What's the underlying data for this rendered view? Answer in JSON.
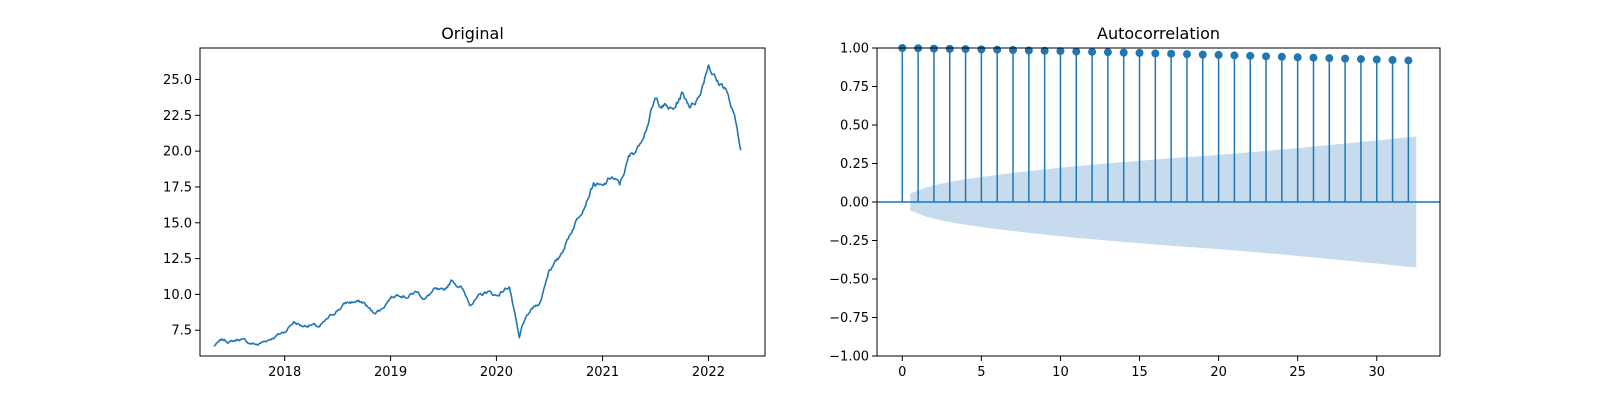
{
  "colors": {
    "line": "#1f77b4",
    "stem": "#1f77b4",
    "marker": "#1f77b4",
    "confidence_band": "#c6dbee",
    "axis": "#000000",
    "background": "#ffffff"
  },
  "chart_data": [
    {
      "type": "line",
      "title": "Original",
      "xlabel": "",
      "ylabel": "",
      "grid": false,
      "x_ticks": [
        "2018",
        "2019",
        "2020",
        "2021",
        "2022"
      ],
      "y_ticks": [
        "7.5",
        "10.0",
        "12.5",
        "15.0",
        "17.5",
        "20.0",
        "22.5",
        "25.0"
      ],
      "xlim": [
        "2017-03-15",
        "2022-07-15"
      ],
      "ylim": [
        5.7,
        27.2
      ],
      "series": [
        {
          "x": [
            "2017-05-01",
            "2017-06-01",
            "2017-07-01",
            "2017-08-01",
            "2017-09-01",
            "2017-10-01",
            "2017-11-01",
            "2017-12-01",
            "2018-01-01",
            "2018-02-01",
            "2018-03-01",
            "2018-04-01",
            "2018-05-01",
            "2018-06-01",
            "2018-07-01",
            "2018-08-01",
            "2018-09-01",
            "2018-10-01",
            "2018-11-01",
            "2018-12-01",
            "2019-01-01",
            "2019-02-01",
            "2019-03-01",
            "2019-04-01",
            "2019-05-01",
            "2019-06-01",
            "2019-07-01",
            "2019-08-01",
            "2019-09-01",
            "2019-10-01",
            "2019-11-01",
            "2019-12-01",
            "2020-01-01",
            "2020-02-15",
            "2020-03-20",
            "2020-04-01",
            "2020-05-01",
            "2020-06-01",
            "2020-07-01",
            "2020-08-01",
            "2020-09-01",
            "2020-10-01",
            "2020-11-01",
            "2020-12-01",
            "2021-01-01",
            "2021-02-01",
            "2021-03-01",
            "2021-04-01",
            "2021-05-01",
            "2021-06-01",
            "2021-07-01",
            "2021-08-01",
            "2021-09-01",
            "2021-10-01",
            "2021-11-01",
            "2021-12-01",
            "2022-01-01",
            "2022-02-01",
            "2022-03-01",
            "2022-04-01",
            "2022-04-25"
          ],
          "values": [
            6.4,
            6.8,
            6.7,
            6.9,
            6.6,
            6.5,
            6.8,
            7.1,
            7.4,
            8.1,
            7.8,
            7.9,
            7.7,
            8.3,
            8.9,
            9.4,
            9.5,
            9.4,
            8.7,
            9.0,
            9.8,
            10.1,
            9.9,
            10.2,
            9.7,
            10.3,
            10.1,
            11.0,
            10.5,
            9.4,
            9.8,
            10.2,
            9.9,
            10.6,
            6.8,
            7.9,
            8.9,
            9.5,
            11.8,
            12.4,
            13.8,
            15.1,
            16.4,
            17.8,
            17.4,
            18.2,
            17.6,
            19.5,
            20.2,
            21.8,
            23.5,
            23.2,
            22.8,
            24.0,
            23.2,
            23.9,
            26.2,
            24.8,
            24.5,
            22.2,
            20.1
          ]
        }
      ]
    },
    {
      "type": "stem",
      "title": "Autocorrelation",
      "xlabel": "",
      "ylabel": "",
      "grid": false,
      "x_ticks": [
        "0",
        "5",
        "10",
        "15",
        "20",
        "25",
        "30"
      ],
      "y_ticks": [
        "−1.00",
        "−0.75",
        "−0.50",
        "−0.25",
        "0.00",
        "0.25",
        "0.50",
        "0.75",
        "1.00"
      ],
      "xlim": [
        -1.6,
        34
      ],
      "ylim": [
        -1,
        1
      ],
      "lags": [
        0,
        1,
        2,
        3,
        4,
        5,
        6,
        7,
        8,
        9,
        10,
        11,
        12,
        13,
        14,
        15,
        16,
        17,
        18,
        19,
        20,
        21,
        22,
        23,
        24,
        25,
        26,
        27,
        28,
        29,
        30,
        31,
        32
      ],
      "acf": [
        1.0,
        0.998,
        0.996,
        0.994,
        0.993,
        0.991,
        0.989,
        0.987,
        0.984,
        0.982,
        0.98,
        0.977,
        0.975,
        0.973,
        0.97,
        0.968,
        0.965,
        0.963,
        0.96,
        0.957,
        0.955,
        0.952,
        0.949,
        0.946,
        0.943,
        0.94,
        0.937,
        0.934,
        0.931,
        0.928,
        0.925,
        0.922,
        0.919
      ],
      "confidence_band": {
        "lags": [
          0.5,
          1.5,
          2.5,
          3.5,
          4.5,
          5.5,
          7.5,
          10.5,
          13.5,
          16.5,
          20.5,
          24.5,
          28.5,
          32.5
        ],
        "upper": [
          0.055,
          0.095,
          0.12,
          0.14,
          0.155,
          0.17,
          0.195,
          0.228,
          0.255,
          0.28,
          0.31,
          0.345,
          0.385,
          0.425
        ]
      }
    }
  ]
}
